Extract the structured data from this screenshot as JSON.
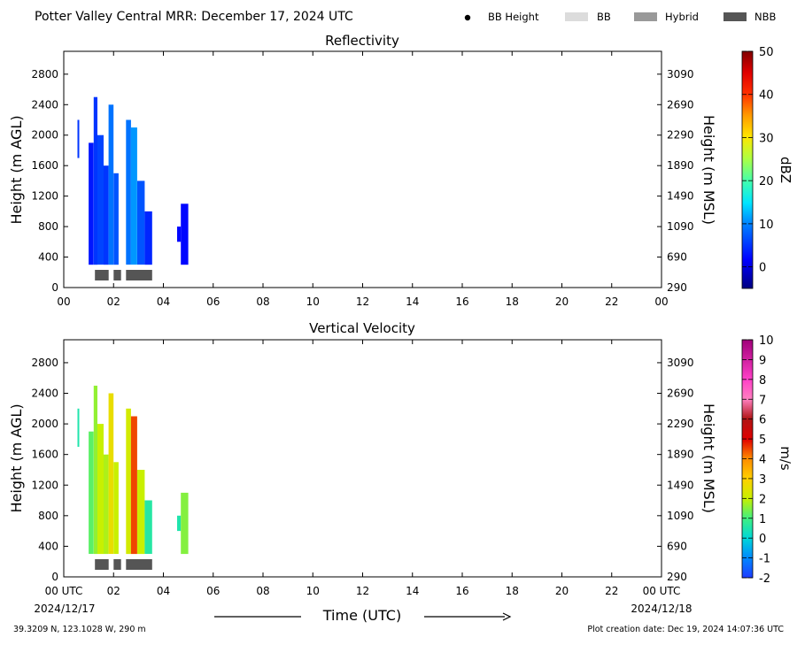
{
  "header": {
    "title": "Potter Valley Central MRR:  December 17, 2024 UTC",
    "legend": [
      {
        "label": "BB Height",
        "marker": "dot",
        "color": "#000000"
      },
      {
        "label": "BB",
        "marker": "box",
        "color": "#dcdcdc"
      },
      {
        "label": "Hybrid",
        "marker": "box",
        "color": "#999999"
      },
      {
        "label": "NBB",
        "marker": "box",
        "color": "#555555"
      }
    ]
  },
  "footer": {
    "location": "39.3209 N, 123.1028 W, 290 m",
    "creation": "Plot creation date: Dec 19, 2024 14:07:36 UTC",
    "xlabel": "Time (UTC)",
    "start_date": "2024/12/17",
    "end_date": "2024/12/18"
  },
  "chart_data": [
    {
      "type": "heatmap",
      "title": "Reflectivity",
      "ylabel": "Height (m AGL)",
      "ylabel_right": "Height (m MSL)",
      "xlim": [
        0,
        24
      ],
      "ylim": [
        0,
        3100
      ],
      "x_ticks": [
        "00",
        "02",
        "04",
        "06",
        "08",
        "10",
        "12",
        "14",
        "16",
        "18",
        "20",
        "22",
        "00"
      ],
      "y_ticks": [
        0,
        400,
        800,
        1200,
        1600,
        2000,
        2400,
        2800
      ],
      "y_ticks_right": [
        290,
        690,
        1090,
        1490,
        1890,
        2290,
        2690,
        3090
      ],
      "colorbar": {
        "label": "dBZ",
        "range": [
          -5,
          50
        ],
        "ticks": [
          0,
          10,
          20,
          30,
          40,
          50
        ]
      },
      "echo_columns": [
        {
          "t0": 0.55,
          "t1": 0.62,
          "h0": 1700,
          "h1": 2200,
          "value": 5
        },
        {
          "t0": 1.0,
          "t1": 1.2,
          "h0": 300,
          "h1": 1900,
          "value": 3
        },
        {
          "t0": 1.2,
          "t1": 1.35,
          "h0": 300,
          "h1": 2500,
          "value": 5
        },
        {
          "t0": 1.35,
          "t1": 1.6,
          "h0": 300,
          "h1": 2000,
          "value": 6
        },
        {
          "t0": 1.6,
          "t1": 1.8,
          "h0": 300,
          "h1": 1600,
          "value": 5
        },
        {
          "t0": 1.8,
          "t1": 2.0,
          "h0": 300,
          "h1": 2400,
          "value": 9
        },
        {
          "t0": 2.0,
          "t1": 2.2,
          "h0": 300,
          "h1": 1500,
          "value": 7
        },
        {
          "t0": 2.5,
          "t1": 2.7,
          "h0": 300,
          "h1": 2200,
          "value": 9
        },
        {
          "t0": 2.7,
          "t1": 2.95,
          "h0": 300,
          "h1": 2100,
          "value": 11
        },
        {
          "t0": 2.95,
          "t1": 3.25,
          "h0": 300,
          "h1": 1400,
          "value": 7
        },
        {
          "t0": 3.25,
          "t1": 3.55,
          "h0": 300,
          "h1": 1000,
          "value": 4
        },
        {
          "t0": 4.55,
          "t1": 4.7,
          "h0": 600,
          "h1": 800,
          "value": 2
        },
        {
          "t0": 4.7,
          "t1": 5.0,
          "h0": 300,
          "h1": 1100,
          "value": 2
        }
      ],
      "bands": [
        {
          "type": "NBB",
          "t0": 1.25,
          "t1": 1.8
        },
        {
          "type": "NBB",
          "t0": 2.0,
          "t1": 2.3
        },
        {
          "type": "NBB",
          "t0": 2.5,
          "t1": 3.55
        }
      ]
    },
    {
      "type": "heatmap",
      "title": "Vertical Velocity",
      "ylabel": "Height (m AGL)",
      "ylabel_right": "Height (m MSL)",
      "xlim": [
        0,
        24
      ],
      "ylim": [
        0,
        3100
      ],
      "x_ticks": [
        "00 UTC",
        "02",
        "04",
        "06",
        "08",
        "10",
        "12",
        "14",
        "16",
        "18",
        "20",
        "22",
        "00 UTC"
      ],
      "y_ticks": [
        0,
        400,
        800,
        1200,
        1600,
        2000,
        2400,
        2800
      ],
      "y_ticks_right": [
        290,
        690,
        1090,
        1490,
        1890,
        2290,
        2690,
        3090
      ],
      "colorbar": {
        "label": "m/s",
        "range": [
          -2,
          10
        ],
        "ticks": [
          -2,
          -1,
          0,
          1,
          2,
          3,
          4,
          5,
          6,
          7,
          8,
          9,
          10
        ]
      },
      "echo_columns": [
        {
          "t0": 0.55,
          "t1": 0.62,
          "h0": 1700,
          "h1": 2200,
          "value": 0.5
        },
        {
          "t0": 1.0,
          "t1": 1.2,
          "h0": 300,
          "h1": 1900,
          "value": 1.2
        },
        {
          "t0": 1.2,
          "t1": 1.35,
          "h0": 300,
          "h1": 2500,
          "value": 1.6
        },
        {
          "t0": 1.35,
          "t1": 1.6,
          "h0": 300,
          "h1": 2000,
          "value": 2.0
        },
        {
          "t0": 1.6,
          "t1": 1.8,
          "h0": 300,
          "h1": 1600,
          "value": 1.8
        },
        {
          "t0": 1.8,
          "t1": 2.0,
          "h0": 300,
          "h1": 2400,
          "value": 2.6
        },
        {
          "t0": 2.0,
          "t1": 2.2,
          "h0": 300,
          "h1": 1500,
          "value": 2.0
        },
        {
          "t0": 2.5,
          "t1": 2.7,
          "h0": 300,
          "h1": 2200,
          "value": 2.2
        },
        {
          "t0": 2.7,
          "t1": 2.95,
          "h0": 300,
          "h1": 2100,
          "value": 4.5
        },
        {
          "t0": 2.95,
          "t1": 3.25,
          "h0": 300,
          "h1": 1400,
          "value": 2.0
        },
        {
          "t0": 3.25,
          "t1": 3.55,
          "h0": 300,
          "h1": 1000,
          "value": 0.6
        },
        {
          "t0": 4.55,
          "t1": 4.7,
          "h0": 600,
          "h1": 800,
          "value": 0.5
        },
        {
          "t0": 4.7,
          "t1": 5.0,
          "h0": 300,
          "h1": 1100,
          "value": 1.5
        }
      ],
      "bands": [
        {
          "type": "NBB",
          "t0": 1.25,
          "t1": 1.8
        },
        {
          "type": "NBB",
          "t0": 2.0,
          "t1": 2.3
        },
        {
          "type": "NBB",
          "t0": 2.5,
          "t1": 3.55
        }
      ]
    }
  ]
}
